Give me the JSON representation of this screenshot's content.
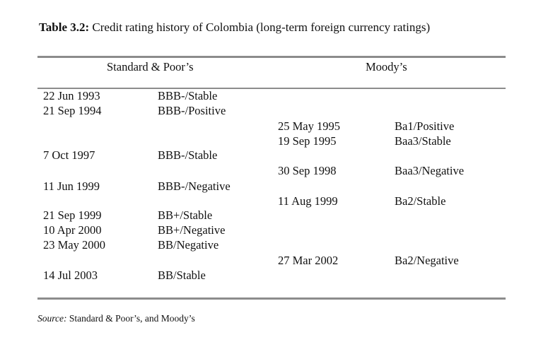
{
  "caption": {
    "label": "Table 3.2:",
    "text": " Credit rating history of Colombia (long-term foreign currency ratings)"
  },
  "headers": {
    "sp": "Standard & Poor’s",
    "moodys": "Moody’s"
  },
  "sp_rows": [
    {
      "date": "22 Jun 1993",
      "rating": "BBB-/Stable"
    },
    {
      "date": "21 Sep 1994",
      "rating": "BBB-/Positive"
    },
    {
      "date": "7 Oct 1997",
      "rating": "BBB-/Stable"
    },
    {
      "date": "11 Jun 1999",
      "rating": "BBB-/Negative"
    },
    {
      "date": "21 Sep 1999",
      "rating": "BB+/Stable"
    },
    {
      "date": "10 Apr 2000",
      "rating": "BB+/Negative"
    },
    {
      "date": "23 May 2000",
      "rating": "BB/Negative"
    },
    {
      "date": "14 Jul 2003",
      "rating": "BB/Stable"
    }
  ],
  "moodys_rows": [
    {
      "date": "25 May 1995",
      "rating": "Ba1/Positive"
    },
    {
      "date": "19 Sep 1995",
      "rating": "Baa3/Stable"
    },
    {
      "date": "30 Sep 1998",
      "rating": "Baa3/Negative"
    },
    {
      "date": "11 Aug 1999",
      "rating": "Ba2/Stable"
    },
    {
      "date": "27 Mar 2002",
      "rating": "Ba2/Negative"
    }
  ],
  "source": {
    "label": "Source:",
    "text": " Standard & Poor’s, and Moody’s"
  }
}
